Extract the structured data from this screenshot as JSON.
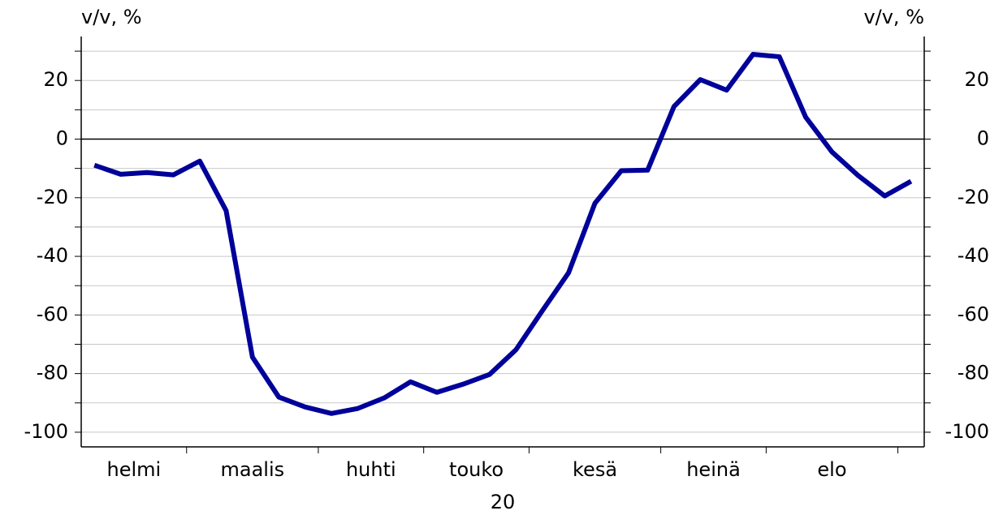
{
  "chart_data": {
    "type": "line",
    "ylabel": "v/v, %",
    "y2label": "v/v, %",
    "months": [
      {
        "label": "helmi",
        "weeks": 4
      },
      {
        "label": "maalis",
        "weeks": 5
      },
      {
        "label": "huhti",
        "weeks": 4
      },
      {
        "label": "touko",
        "weeks": 4
      },
      {
        "label": "kesä",
        "weeks": 5
      },
      {
        "label": "heinä",
        "weeks": 4
      },
      {
        "label": "elo",
        "weeks": 5
      },
      {
        "label": null,
        "weeks": 1
      }
    ],
    "year_label": "20",
    "series": [
      {
        "name": null,
        "color": "#00009a",
        "values": [
          -8.9,
          -12,
          -11.4,
          -12.2,
          -7.5,
          -24.4,
          -74.4,
          -88,
          -91.4,
          -93.6,
          -91.9,
          -88.3,
          -82.8,
          -86.4,
          -83.6,
          -80.3,
          -71.9,
          -58.6,
          -45.6,
          -21.9,
          -10.8,
          -10.6,
          11.1,
          20.3,
          16.7,
          28.9,
          28.1,
          7.5,
          -4.4,
          -12.5,
          -19.4,
          -14.4
        ]
      }
    ],
    "ylim": [
      -105,
      35
    ],
    "yticks": [
      -100,
      -80,
      -60,
      -40,
      -20,
      0,
      20
    ],
    "minor_yticks": [
      -90,
      -70,
      -50,
      -30,
      -10,
      10,
      30
    ],
    "grid": true
  }
}
